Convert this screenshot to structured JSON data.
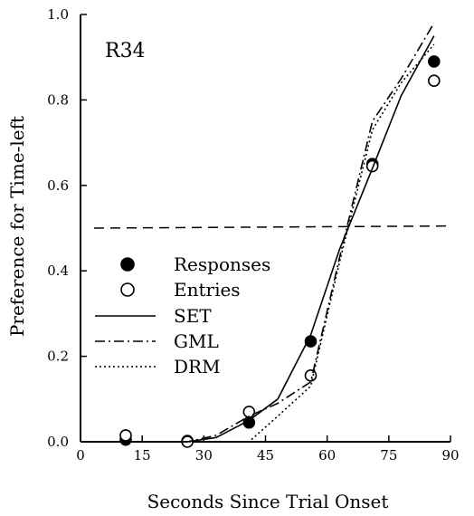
{
  "chart_data": {
    "type": "line",
    "panel_label": "R34",
    "xlabel": "Seconds Since Trial Onset",
    "ylabel": "Preference for Time-left",
    "xlim": [
      0,
      90
    ],
    "ylim": [
      0,
      1.0
    ],
    "x_ticks": [
      0,
      15,
      30,
      45,
      60,
      75,
      90
    ],
    "y_ticks": [
      0.0,
      0.2,
      0.4,
      0.6,
      0.8,
      1.0
    ],
    "y_tick_labels": [
      "0.0",
      "0.2",
      "0.4",
      "0.6",
      "0.8",
      "1.0"
    ],
    "reference_line": {
      "y_start": 0.5,
      "y_end": 0.505,
      "style": "dashed"
    },
    "grid": false,
    "legend_position": "left-middle",
    "series": [
      {
        "name": "Responses",
        "kind": "points",
        "marker": "filled-circle",
        "x": [
          11,
          26,
          41,
          56,
          71,
          86
        ],
        "y": [
          0.005,
          0.002,
          0.045,
          0.235,
          0.65,
          0.89
        ]
      },
      {
        "name": "Entries",
        "kind": "points",
        "marker": "open-circle",
        "x": [
          11,
          26,
          41,
          56,
          71,
          86
        ],
        "y": [
          0.015,
          0.0,
          0.07,
          0.155,
          0.645,
          0.845
        ]
      },
      {
        "name": "SET",
        "kind": "line",
        "dash": "solid",
        "x": [
          11,
          26,
          33,
          41,
          48,
          56,
          63,
          71,
          78,
          86
        ],
        "y": [
          0.0,
          0.0,
          0.01,
          0.05,
          0.1,
          0.25,
          0.45,
          0.64,
          0.81,
          0.95
        ]
      },
      {
        "name": "GML",
        "kind": "line",
        "dash": "dashdot",
        "x": [
          11,
          26,
          33,
          41,
          48,
          56,
          63,
          71,
          78,
          86
        ],
        "y": [
          0.0,
          0.0,
          0.015,
          0.06,
          0.09,
          0.14,
          0.43,
          0.75,
          0.85,
          0.98
        ]
      },
      {
        "name": "DRM",
        "kind": "line",
        "dash": "dotted",
        "x": [
          11,
          26,
          33,
          41,
          48,
          56,
          63,
          71,
          78,
          86
        ],
        "y": [
          0.0,
          0.0,
          0.0,
          0.0,
          0.06,
          0.13,
          0.42,
          0.73,
          0.84,
          0.93
        ]
      }
    ]
  }
}
